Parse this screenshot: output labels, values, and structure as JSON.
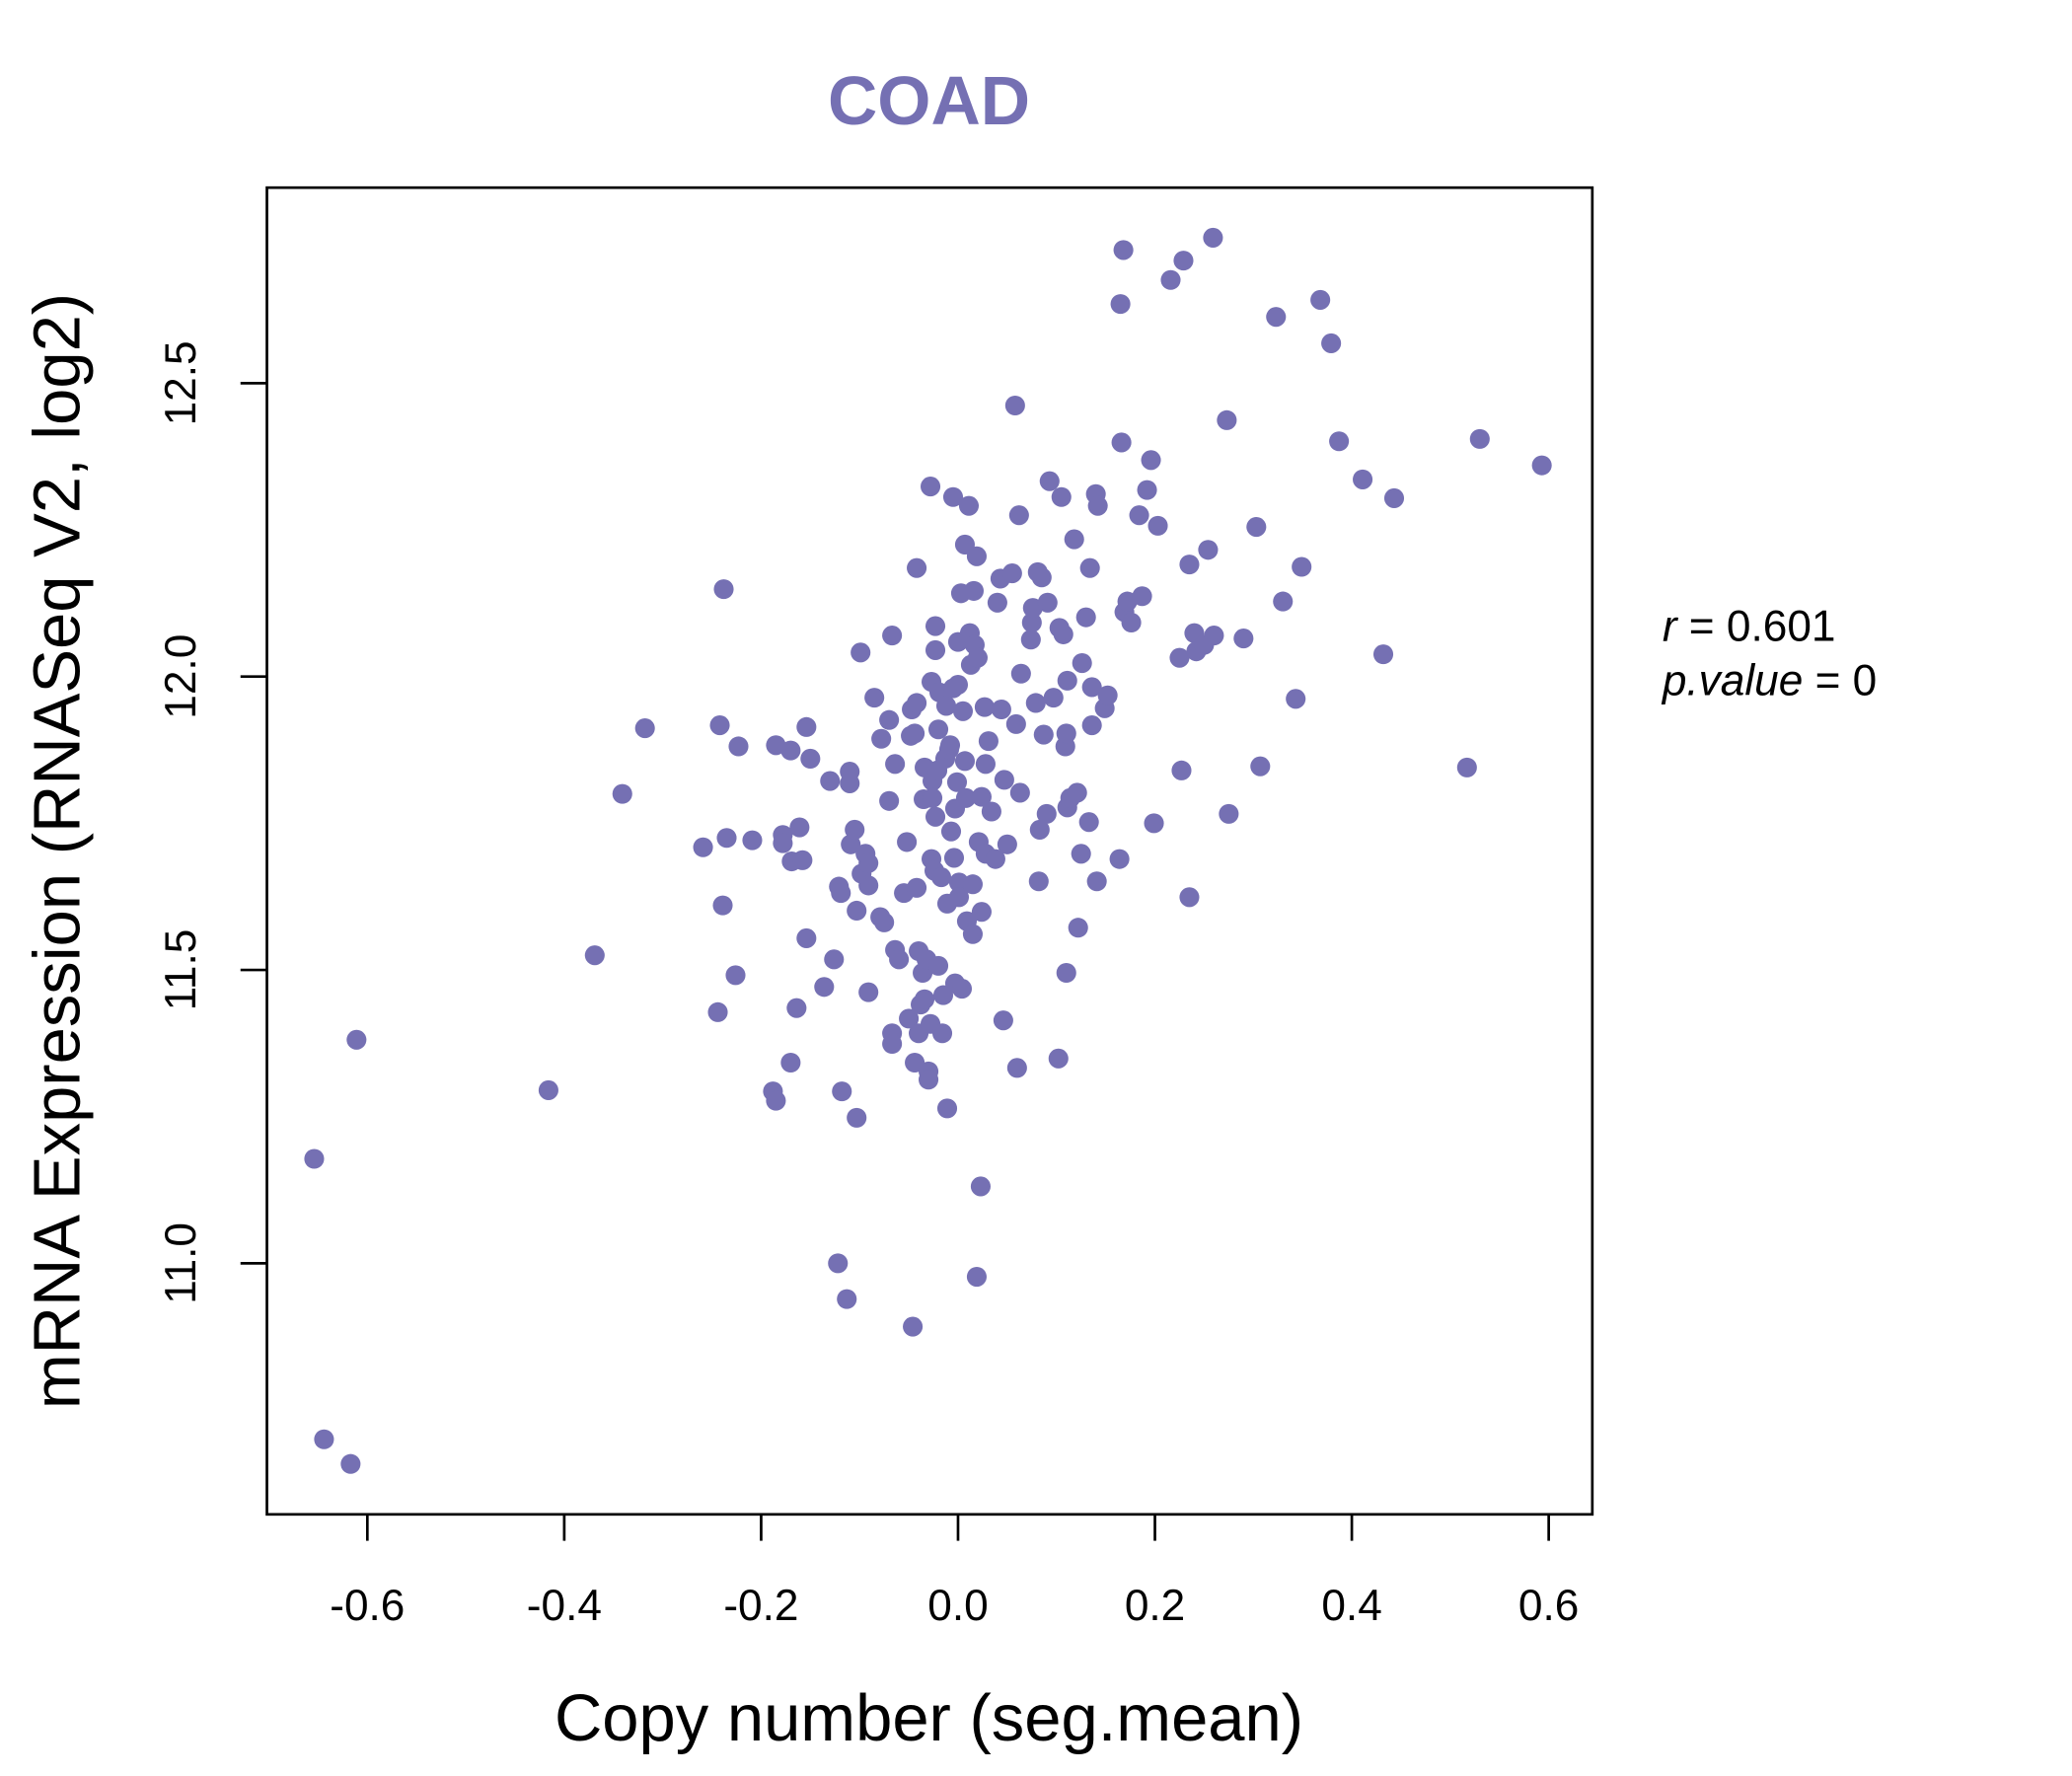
{
  "chart_data": {
    "type": "scatter",
    "title": "COAD",
    "xlabel": "Copy number (seg.mean)",
    "ylabel": "mRNA Expression (RNASeq V2, log2)",
    "xlim": [
      -0.7,
      0.65
    ],
    "ylim": [
      10.6,
      12.83
    ],
    "xticks": [
      -0.6,
      -0.4,
      -0.2,
      0.0,
      0.2,
      0.4,
      0.6
    ],
    "xtick_labels": [
      "-0.6",
      "-0.4",
      "-0.2",
      "0.0",
      "0.2",
      "0.4",
      "0.6"
    ],
    "yticks": [
      11.0,
      11.5,
      12.0,
      12.5
    ],
    "ytick_labels": [
      "11.0",
      "11.5",
      "12.0",
      "12.5"
    ],
    "grid": false,
    "color": "#7570B3",
    "annotation": {
      "r_label": "r",
      "r_value": "0.601",
      "p_label": "p.value",
      "p_value": "0"
    },
    "points": [
      [
        -0.654,
        11.178
      ],
      [
        -0.644,
        10.7
      ],
      [
        -0.617,
        10.658
      ],
      [
        -0.611,
        11.381
      ],
      [
        -0.416,
        11.295
      ],
      [
        -0.369,
        11.525
      ],
      [
        -0.341,
        11.8
      ],
      [
        -0.318,
        11.912
      ],
      [
        -0.259,
        11.709
      ],
      [
        -0.244,
        11.428
      ],
      [
        -0.242,
        11.917
      ],
      [
        -0.239,
        11.61
      ],
      [
        -0.238,
        12.149
      ],
      [
        -0.235,
        11.725
      ],
      [
        -0.226,
        11.491
      ],
      [
        -0.223,
        11.881
      ],
      [
        -0.209,
        11.721
      ],
      [
        -0.188,
        11.293
      ],
      [
        -0.185,
        11.277
      ],
      [
        -0.185,
        11.883
      ],
      [
        -0.178,
        11.73
      ],
      [
        -0.178,
        11.716
      ],
      [
        -0.17,
        11.874
      ],
      [
        -0.17,
        11.342
      ],
      [
        -0.169,
        11.685
      ],
      [
        -0.164,
        11.435
      ],
      [
        -0.161,
        11.743
      ],
      [
        -0.158,
        11.687
      ],
      [
        -0.154,
        11.914
      ],
      [
        -0.154,
        11.554
      ],
      [
        -0.15,
        11.86
      ],
      [
        -0.136,
        11.471
      ],
      [
        -0.13,
        11.822
      ],
      [
        -0.126,
        11.518
      ],
      [
        -0.122,
        11.0
      ],
      [
        -0.121,
        11.642
      ],
      [
        -0.119,
        11.631
      ],
      [
        -0.118,
        11.293
      ],
      [
        -0.113,
        10.939
      ],
      [
        -0.11,
        11.838
      ],
      [
        -0.11,
        11.818
      ],
      [
        -0.109,
        11.714
      ],
      [
        -0.105,
        11.739
      ],
      [
        -0.103,
        11.248
      ],
      [
        -0.103,
        11.601
      ],
      [
        -0.099,
        12.041
      ],
      [
        -0.098,
        11.664
      ],
      [
        -0.094,
        11.698
      ],
      [
        -0.091,
        11.682
      ],
      [
        -0.091,
        11.644
      ],
      [
        -0.091,
        11.462
      ],
      [
        -0.085,
        11.964
      ],
      [
        -0.079,
        11.59
      ],
      [
        -0.078,
        11.894
      ],
      [
        -0.075,
        11.581
      ],
      [
        -0.07,
        11.926
      ],
      [
        -0.07,
        11.788
      ],
      [
        -0.067,
        12.07
      ],
      [
        -0.067,
        11.392
      ],
      [
        -0.067,
        11.374
      ],
      [
        -0.064,
        11.851
      ],
      [
        -0.064,
        11.534
      ],
      [
        -0.06,
        11.518
      ],
      [
        -0.055,
        11.631
      ],
      [
        -0.052,
        11.718
      ],
      [
        -0.05,
        11.417
      ],
      [
        -0.048,
        11.899
      ],
      [
        -0.047,
        11.944
      ],
      [
        -0.046,
        10.892
      ],
      [
        -0.044,
        11.342
      ],
      [
        -0.044,
        11.903
      ],
      [
        -0.042,
        12.185
      ],
      [
        -0.042,
        11.64
      ],
      [
        -0.042,
        11.955
      ],
      [
        -0.04,
        11.532
      ],
      [
        -0.04,
        11.392
      ],
      [
        -0.038,
        11.441
      ],
      [
        -0.036,
        11.495
      ],
      [
        -0.035,
        11.791
      ],
      [
        -0.034,
        11.845
      ],
      [
        -0.034,
        11.45
      ],
      [
        -0.032,
        11.518
      ],
      [
        -0.03,
        11.327
      ],
      [
        -0.03,
        11.313
      ],
      [
        -0.028,
        12.324
      ],
      [
        -0.028,
        11.408
      ],
      [
        -0.027,
        11.689
      ],
      [
        -0.027,
        11.991
      ],
      [
        -0.026,
        11.822
      ],
      [
        -0.026,
        11.793
      ],
      [
        -0.024,
        11.669
      ],
      [
        -0.023,
        12.045
      ],
      [
        -0.023,
        12.086
      ],
      [
        -0.023,
        11.761
      ],
      [
        -0.021,
        11.84
      ],
      [
        -0.02,
        11.91
      ],
      [
        -0.02,
        11.507
      ],
      [
        -0.019,
        11.973
      ],
      [
        -0.017,
        11.658
      ],
      [
        -0.016,
        11.392
      ],
      [
        -0.015,
        11.457
      ],
      [
        -0.013,
        11.86
      ],
      [
        -0.012,
        11.95
      ],
      [
        -0.011,
        11.264
      ],
      [
        -0.011,
        11.613
      ],
      [
        -0.009,
        11.876
      ],
      [
        -0.008,
        11.883
      ],
      [
        -0.007,
        11.736
      ],
      [
        -0.005,
        12.306
      ],
      [
        -0.005,
        11.98
      ],
      [
        -0.004,
        11.691
      ],
      [
        -0.003,
        11.775
      ],
      [
        -0.003,
        11.477
      ],
      [
        -0.001,
        11.82
      ],
      [
        0.0,
        11.986
      ],
      [
        0.0,
        12.059
      ],
      [
        0.001,
        11.649
      ],
      [
        0.001,
        11.624
      ],
      [
        0.003,
        12.142
      ],
      [
        0.004,
        11.468
      ],
      [
        0.005,
        11.941
      ],
      [
        0.007,
        12.225
      ],
      [
        0.007,
        11.856
      ],
      [
        0.008,
        11.793
      ],
      [
        0.009,
        11.583
      ],
      [
        0.011,
        12.291
      ],
      [
        0.012,
        12.074
      ],
      [
        0.013,
        12.02
      ],
      [
        0.015,
        11.646
      ],
      [
        0.015,
        11.561
      ],
      [
        0.016,
        12.146
      ],
      [
        0.017,
        12.054
      ],
      [
        0.019,
        10.977
      ],
      [
        0.019,
        12.205
      ],
      [
        0.02,
        12.032
      ],
      [
        0.021,
        11.718
      ],
      [
        0.023,
        11.131
      ],
      [
        0.024,
        11.599
      ],
      [
        0.024,
        11.795
      ],
      [
        0.027,
        11.948
      ],
      [
        0.028,
        11.698
      ],
      [
        0.028,
        11.851
      ],
      [
        0.031,
        11.89
      ],
      [
        0.034,
        11.77
      ],
      [
        0.038,
        11.689
      ],
      [
        0.04,
        12.126
      ],
      [
        0.043,
        12.167
      ],
      [
        0.044,
        11.944
      ],
      [
        0.046,
        11.414
      ],
      [
        0.047,
        11.824
      ],
      [
        0.05,
        11.714
      ],
      [
        0.055,
        12.176
      ],
      [
        0.058,
        12.462
      ],
      [
        0.059,
        11.919
      ],
      [
        0.06,
        11.333
      ],
      [
        0.062,
        12.275
      ],
      [
        0.063,
        11.802
      ],
      [
        0.064,
        12.005
      ],
      [
        0.074,
        12.063
      ],
      [
        0.075,
        12.092
      ],
      [
        0.076,
        12.117
      ],
      [
        0.079,
        11.955
      ],
      [
        0.081,
        12.178
      ],
      [
        0.082,
        11.651
      ],
      [
        0.083,
        11.739
      ],
      [
        0.085,
        12.169
      ],
      [
        0.087,
        11.901
      ],
      [
        0.09,
        11.766
      ],
      [
        0.091,
        12.126
      ],
      [
        0.093,
        12.333
      ],
      [
        0.097,
        11.964
      ],
      [
        0.102,
        11.349
      ],
      [
        0.103,
        12.083
      ],
      [
        0.105,
        12.306
      ],
      [
        0.107,
        12.072
      ],
      [
        0.109,
        11.881
      ],
      [
        0.11,
        11.903
      ],
      [
        0.11,
        11.495
      ],
      [
        0.111,
        11.993
      ],
      [
        0.111,
        11.777
      ],
      [
        0.114,
        11.793
      ],
      [
        0.118,
        12.234
      ],
      [
        0.121,
        11.802
      ],
      [
        0.122,
        11.572
      ],
      [
        0.125,
        11.698
      ],
      [
        0.126,
        12.023
      ],
      [
        0.13,
        12.101
      ],
      [
        0.133,
        11.752
      ],
      [
        0.134,
        12.185
      ],
      [
        0.136,
        11.982
      ],
      [
        0.136,
        11.917
      ],
      [
        0.14,
        12.311
      ],
      [
        0.141,
        11.651
      ],
      [
        0.142,
        12.291
      ],
      [
        0.149,
        11.946
      ],
      [
        0.152,
        11.968
      ],
      [
        0.164,
        11.689
      ],
      [
        0.165,
        12.635
      ],
      [
        0.166,
        12.399
      ],
      [
        0.168,
        12.727
      ],
      [
        0.169,
        12.11
      ],
      [
        0.172,
        12.128
      ],
      [
        0.176,
        12.092
      ],
      [
        0.184,
        12.275
      ],
      [
        0.187,
        12.137
      ],
      [
        0.192,
        12.318
      ],
      [
        0.196,
        12.369
      ],
      [
        0.199,
        11.75
      ],
      [
        0.203,
        12.257
      ],
      [
        0.216,
        12.676
      ],
      [
        0.225,
        12.032
      ],
      [
        0.227,
        11.84
      ],
      [
        0.229,
        12.709
      ],
      [
        0.235,
        12.191
      ],
      [
        0.235,
        11.624
      ],
      [
        0.24,
        12.074
      ],
      [
        0.242,
        12.043
      ],
      [
        0.25,
        12.054
      ],
      [
        0.254,
        12.216
      ],
      [
        0.259,
        12.748
      ],
      [
        0.26,
        12.07
      ],
      [
        0.273,
        12.437
      ],
      [
        0.275,
        11.766
      ],
      [
        0.29,
        12.065
      ],
      [
        0.303,
        12.255
      ],
      [
        0.307,
        11.847
      ],
      [
        0.323,
        12.613
      ],
      [
        0.33,
        12.128
      ],
      [
        0.343,
        11.962
      ],
      [
        0.349,
        12.187
      ],
      [
        0.368,
        12.642
      ],
      [
        0.379,
        12.568
      ],
      [
        0.387,
        12.401
      ],
      [
        0.411,
        12.336
      ],
      [
        0.432,
        12.038
      ],
      [
        0.443,
        12.304
      ],
      [
        0.517,
        11.845
      ],
      [
        0.53,
        12.405
      ],
      [
        0.593,
        12.36
      ]
    ]
  }
}
